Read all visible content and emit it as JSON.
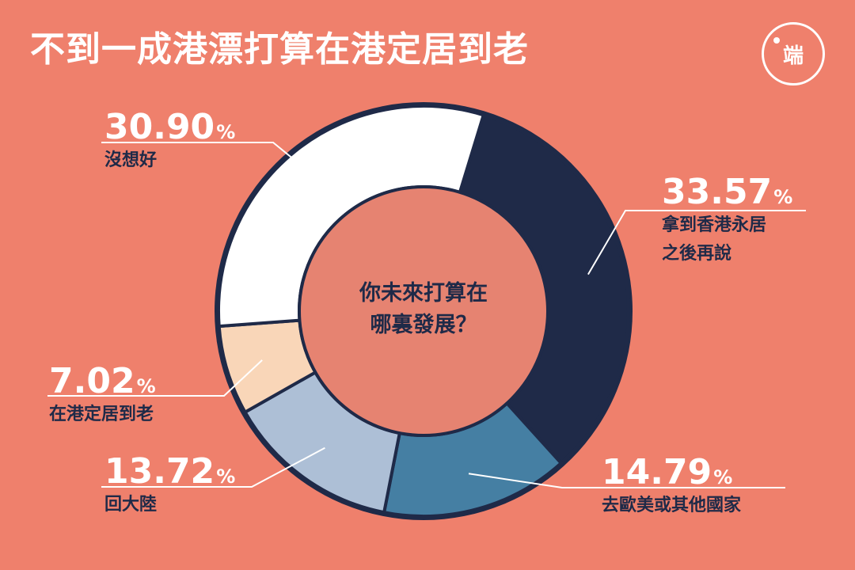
{
  "header": {
    "title": "不到一成港漂打算在港定居到老",
    "logo_text": "端"
  },
  "center_label": [
    "你未來打算在",
    "哪裏發展？"
  ],
  "colors": {
    "background": "#ef806c",
    "center_fill": "#e68371",
    "ring_border": "#1f2a48",
    "leader_line": "#ffffff"
  },
  "chart_data": {
    "type": "pie",
    "title": "不到一成港漂打算在港定居到老",
    "donut": true,
    "unit": "%",
    "slices": [
      {
        "label": "拿到香港永居之後再說",
        "label_lines": [
          "拿到香港永居",
          "之後再說"
        ],
        "value": 33.57,
        "value_text": "33.57",
        "color": "#1f2a48"
      },
      {
        "label": "去歐美或其他國家",
        "label_lines": [
          "去歐美或其他國家"
        ],
        "value": 14.79,
        "value_text": "14.79",
        "color": "#457fa3"
      },
      {
        "label": "回大陸",
        "label_lines": [
          "回大陸"
        ],
        "value": 13.72,
        "value_text": "13.72",
        "color": "#adbfd6"
      },
      {
        "label": "在港定居到老",
        "label_lines": [
          "在港定居到老"
        ],
        "value": 7.02,
        "value_text": "7.02",
        "color": "#f9d6b8"
      },
      {
        "label": "沒想好",
        "label_lines": [
          "沒想好"
        ],
        "value": 30.9,
        "value_text": "30.90",
        "color": "#ffffff"
      }
    ]
  }
}
